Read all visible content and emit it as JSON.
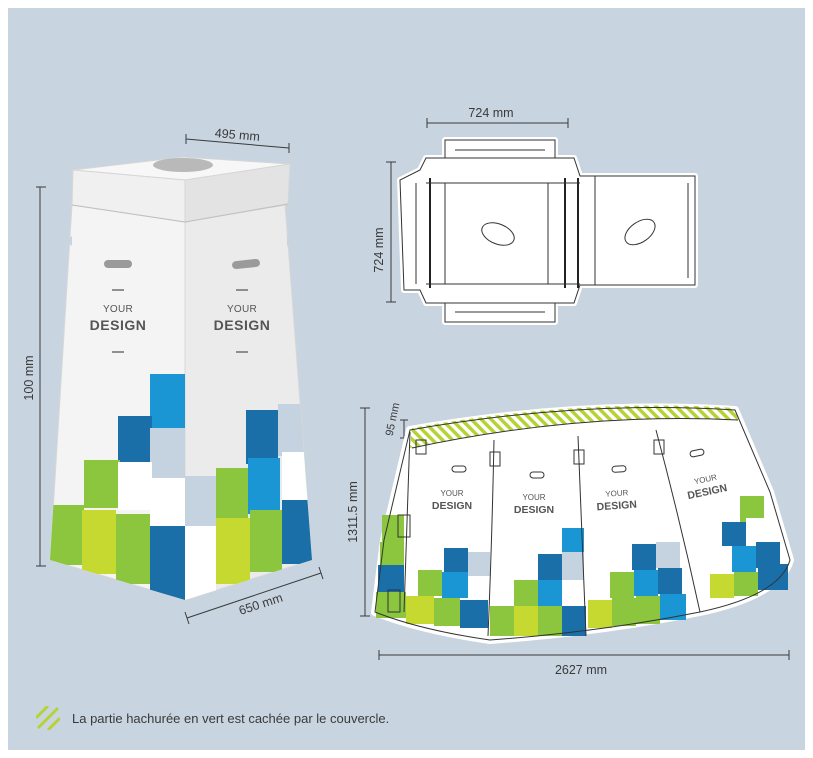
{
  "dimensions": {
    "top_width": "495 mm",
    "height": "100 mm",
    "base_width": "650 mm",
    "lid_width": "724 mm",
    "lid_depth": "724 mm",
    "hatch_height": "95 mm",
    "panel_height": "1311.5 mm",
    "panel_width": "2627 mm"
  },
  "design_label": {
    "your": "YOUR",
    "design": "DESIGN"
  },
  "legend": {
    "text": "La partie hachurée en vert est cachée par le couvercle."
  },
  "colors": {
    "background": "#c8d4e0",
    "green_dark": "#8cc63f",
    "green_light": "#c5d931",
    "blue_dark": "#1a6fa8",
    "blue_mid": "#1b96d4",
    "grey_tile": "#c5d3e0",
    "hatch": "#b5d334"
  },
  "icons": [
    "hatch-legend-icon"
  ]
}
